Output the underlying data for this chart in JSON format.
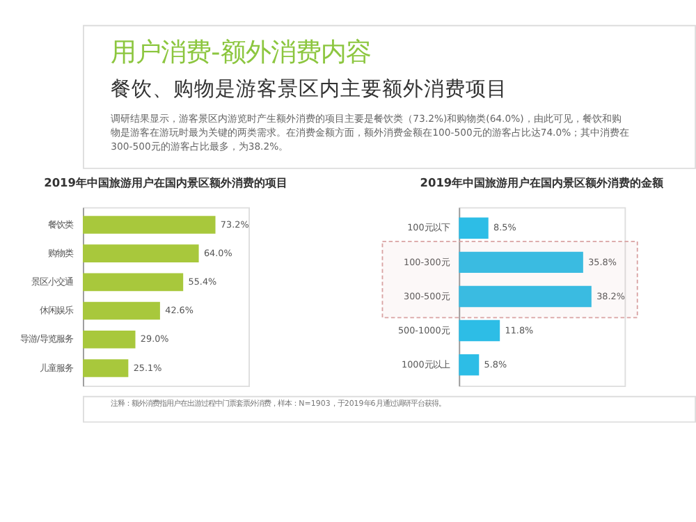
{
  "chart_data": [
    {
      "type": "other",
      "title": "用户消费-额外消费内容",
      "subtitle": "餐饮、购物是游客景区内主要额外消费项目",
      "annotations": [
        "调研结果显示，游客景区内游览时产生额外消费的项目主要是餐饮类（73.2%)和购物类(64.0%)，由此可见，餐饮和购物是游客在游玩时最为关键的两类需求。在消费金额方面，额外消费金额在100-500元的游客占比达74.0%；其中消费在300-500元的游客占比最多，为38.2%。",
        "注释：额外消费指用户在出游过程中门票套票外消费，样本：N=1903，于2019年6月通过调研平台获得。"
      ]
    },
    {
      "type": "bar",
      "orientation": "horizontal",
      "title": "2019年中国旅游用户在国内景区额外消费的项目",
      "categories": [
        "餐饮类",
        "购物类",
        "景区小交通",
        "休闲娱乐",
        "导游/导览服务",
        "儿童服务"
      ],
      "values": [
        73.2,
        64.0,
        55.4,
        42.6,
        29.0,
        25.1
      ],
      "value_labels": [
        "73.2%",
        "64.0%",
        "55.4%",
        "42.6%",
        "29.0%",
        "25.1%"
      ],
      "color": "#a8c83c"
    },
    {
      "type": "bar",
      "orientation": "horizontal",
      "title": "2019年中国旅游用户在国内景区额外消费的金额",
      "categories": [
        "100元以下",
        "100-300元",
        "300-500元",
        "500-1000元",
        "1000元以上"
      ],
      "values": [
        8.5,
        35.8,
        38.2,
        11.8,
        5.8
      ],
      "value_labels": [
        "8.5%",
        "35.8%",
        "38.2%",
        "11.8%",
        "5.8%"
      ],
      "color": "#2dbde6",
      "bands": [
        {
          "axis": "y",
          "from": "100-300元",
          "to": "300-500元",
          "color": "#d9a3a3"
        }
      ]
    }
  ]
}
